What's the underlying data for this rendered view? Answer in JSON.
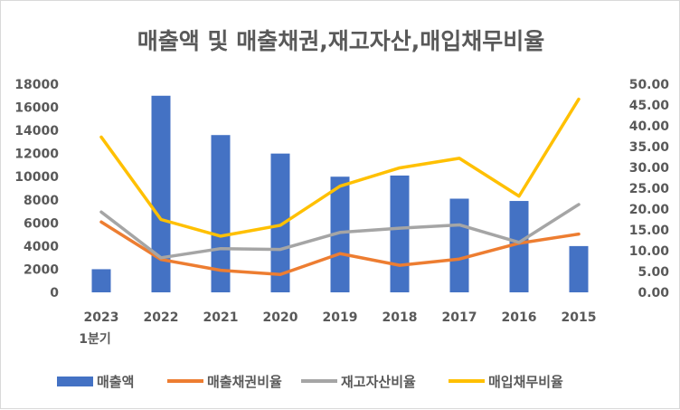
{
  "chart_data": {
    "type": "bar",
    "title": "매출액 및 매출채권,재고자산,매입채무비율",
    "categories": [
      "2023\n1분기",
      "2022",
      "2021",
      "2020",
      "2019",
      "2018",
      "2017",
      "2016",
      "2015"
    ],
    "left_axis": {
      "ylim": [
        0,
        18000
      ],
      "ticks": [
        "0",
        "2000",
        "4000",
        "6000",
        "8000",
        "10000",
        "12000",
        "14000",
        "16000",
        "18000"
      ]
    },
    "right_axis": {
      "ylim": [
        0,
        50
      ],
      "ticks": [
        "0.00",
        "5.00",
        "10.00",
        "15.00",
        "20.00",
        "25.00",
        "30.00",
        "35.00",
        "40.00",
        "45.00",
        "50.00"
      ]
    },
    "series": [
      {
        "name": "매출액",
        "kind": "bar",
        "axis": "left",
        "color": "#4472C4",
        "values": [
          2000,
          17000,
          13600,
          12000,
          10000,
          10100,
          8100,
          7900,
          4000
        ]
      },
      {
        "name": "매출채권비율",
        "kind": "line",
        "axis": "right",
        "color": "#ED7D31",
        "values": [
          16.9,
          7.9,
          5.3,
          4.3,
          9.3,
          6.5,
          8.0,
          11.8,
          14.0
        ]
      },
      {
        "name": "재고자산비율",
        "kind": "line",
        "axis": "right",
        "color": "#A5A5A5",
        "values": [
          19.3,
          8.3,
          10.5,
          10.3,
          14.4,
          15.4,
          16.2,
          12.0,
          21.1
        ]
      },
      {
        "name": "매입채무비율",
        "kind": "line",
        "axis": "right",
        "color": "#FFC000",
        "values": [
          37.3,
          17.5,
          13.5,
          16.1,
          25.5,
          29.9,
          32.2,
          23.1,
          46.4
        ]
      }
    ],
    "legend_position": "bottom"
  }
}
